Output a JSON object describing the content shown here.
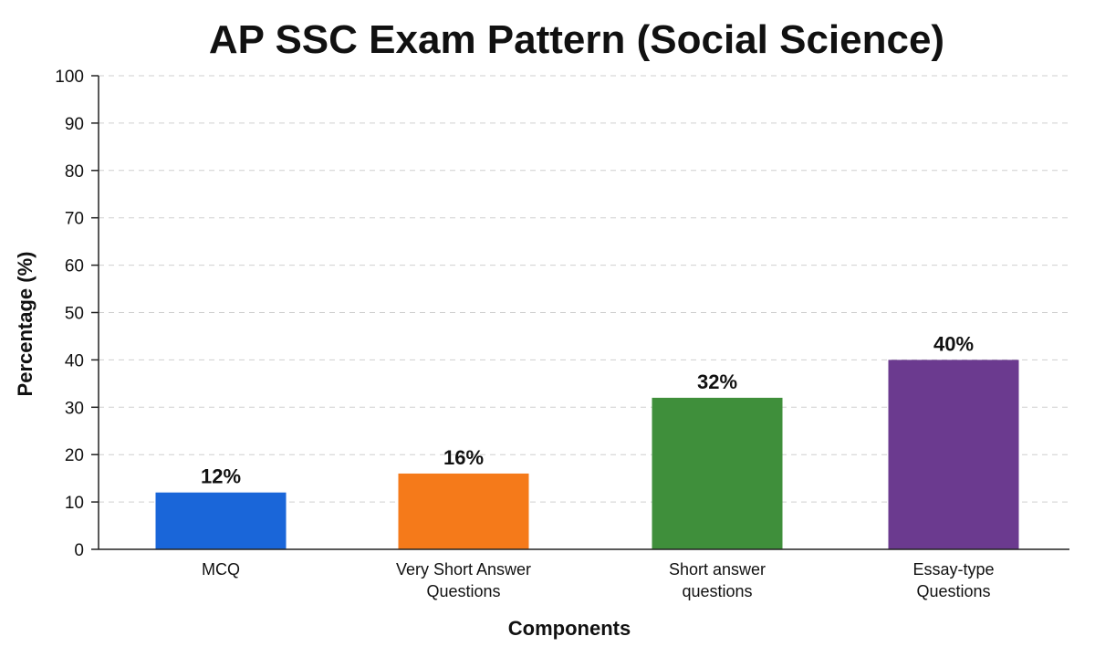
{
  "chart_data": {
    "type": "bar",
    "title": "AP SSC Exam Pattern (Social Science)",
    "xlabel": "Components",
    "ylabel": "Percentage (%)",
    "ylim": [
      0,
      100
    ],
    "yticks": [
      0,
      10,
      20,
      30,
      40,
      50,
      60,
      70,
      80,
      90,
      100
    ],
    "grid": true,
    "categories": [
      [
        "MCQ"
      ],
      [
        "Very Short Answer",
        "Questions"
      ],
      [
        "Short answer",
        "questions"
      ],
      [
        "Essay-type",
        "Questions"
      ]
    ],
    "values": [
      12,
      16,
      32,
      40
    ],
    "data_labels": [
      "12%",
      "16%",
      "32%",
      "40%"
    ],
    "colors": [
      "#1a66d9",
      "#f57a1a",
      "#3f8f3b",
      "#6b3a8f"
    ]
  }
}
